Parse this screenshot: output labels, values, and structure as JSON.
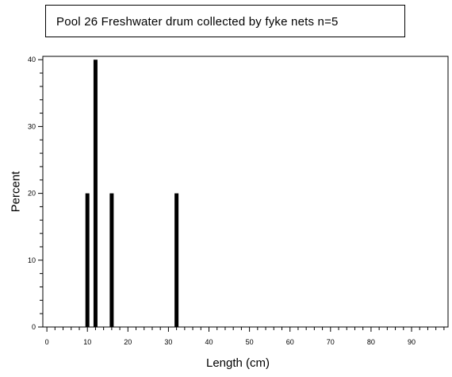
{
  "chart_data": {
    "type": "bar",
    "title": "Pool 26 Freshwater drum collected by fyke nets   n=5",
    "xlabel": "Length (cm)",
    "ylabel": "Percent",
    "x": [
      10,
      12,
      16,
      32
    ],
    "values": [
      20,
      40,
      20,
      20
    ],
    "xlim": [
      -1,
      99
    ],
    "ylim": [
      0,
      40.5
    ],
    "x_ticks": [
      0,
      10,
      20,
      30,
      40,
      50,
      60,
      70,
      80,
      90
    ],
    "y_ticks": [
      0,
      10,
      20,
      30,
      40
    ],
    "grid": false,
    "bar_color": "#000000"
  }
}
